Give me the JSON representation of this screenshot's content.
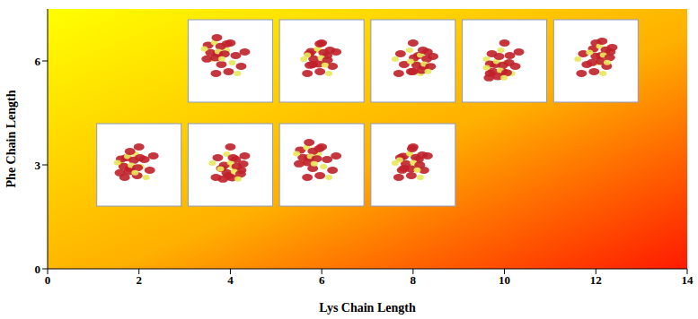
{
  "chart_data": {
    "type": "scatter",
    "x_label": "Lys Chain Length",
    "y_label": "Phe Chain Length",
    "x": [
      4,
      6,
      8,
      10,
      12,
      2,
      4,
      6,
      8
    ],
    "values": [
      6,
      6,
      6,
      6,
      6,
      3,
      3,
      3,
      3
    ],
    "marker": "square",
    "xlim": [
      0,
      14
    ],
    "xticks": [
      0,
      2,
      4,
      6,
      8,
      10,
      12,
      14
    ],
    "ylim": [
      0,
      7.5
    ],
    "yticks": [
      0,
      3,
      6
    ],
    "grid": false
  }
}
